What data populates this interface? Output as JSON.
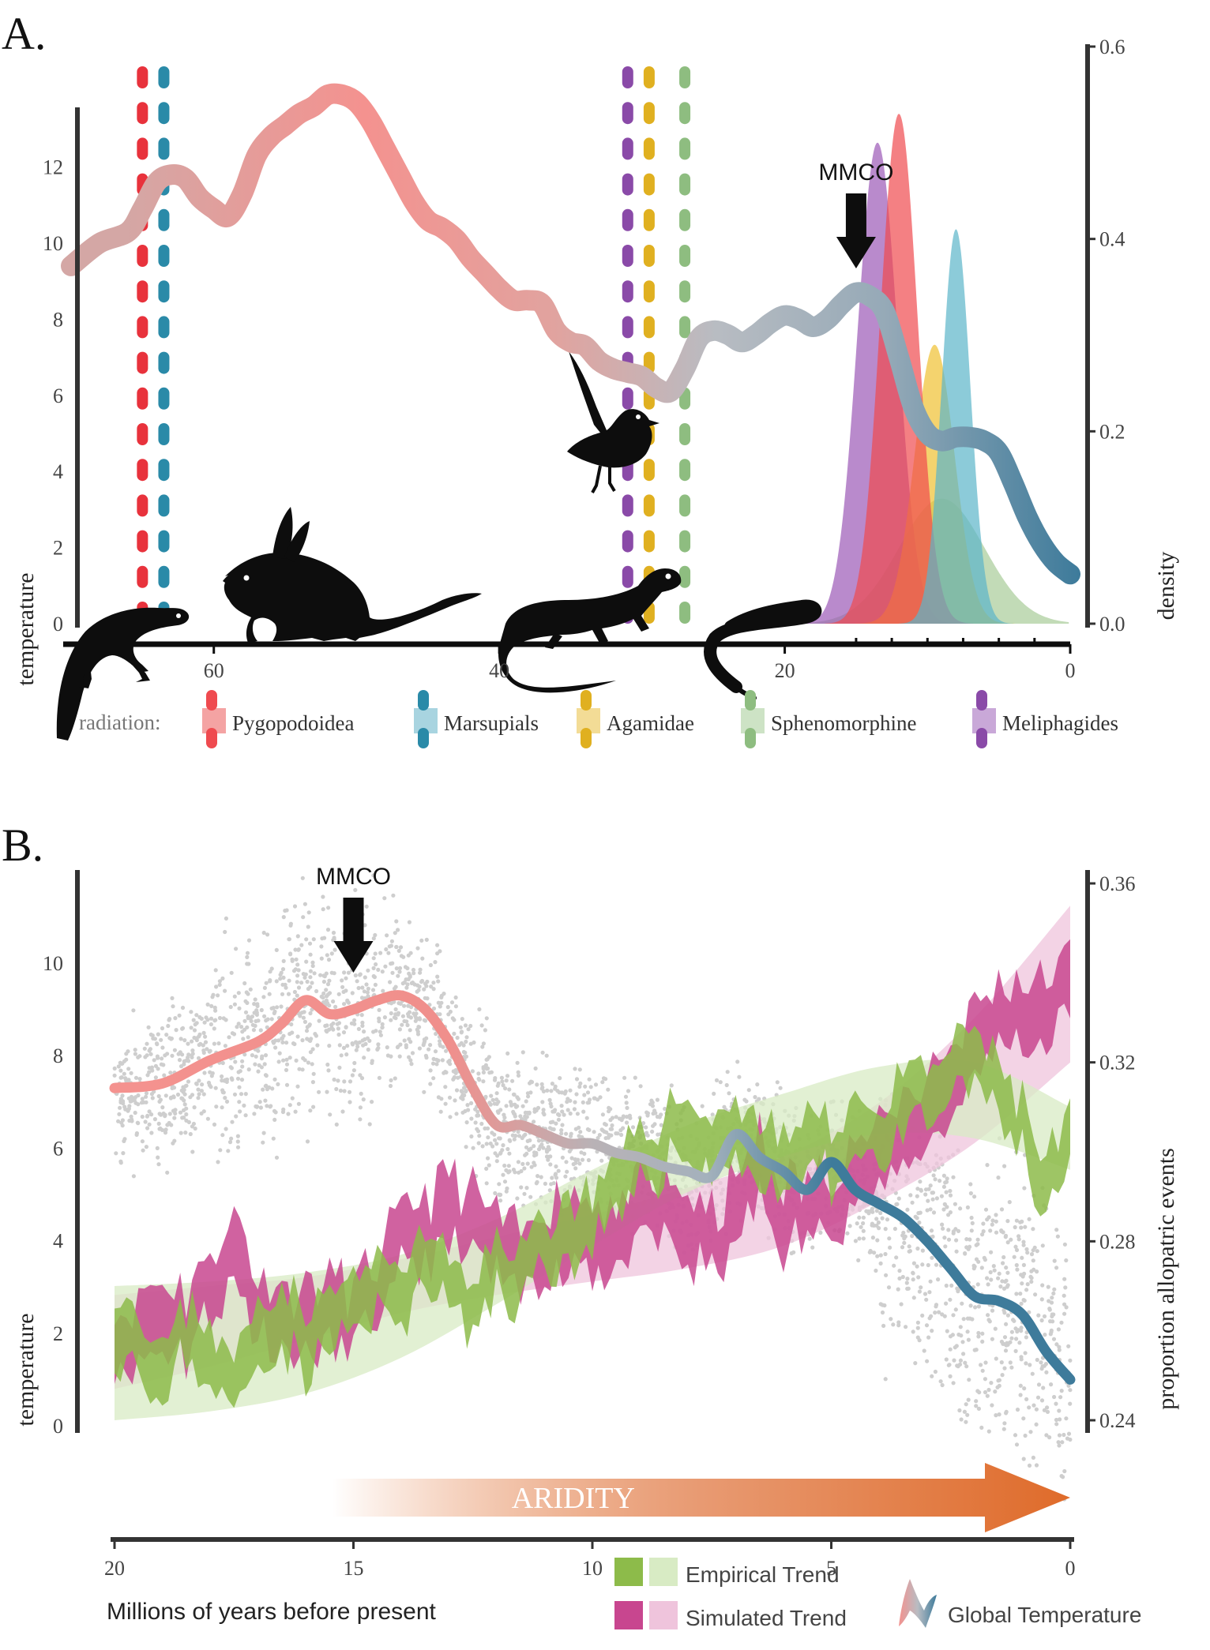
{
  "chart_data": [
    {
      "panel": "A.",
      "type": "line",
      "xlabel": "",
      "ylabel": "temperature",
      "y2label": "density",
      "xlim": [
        70,
        0
      ],
      "ylim": [
        0,
        13
      ],
      "y2lim": [
        0,
        0.6
      ],
      "xticks": [
        60,
        40,
        20,
        0
      ],
      "yticks": [
        0,
        2,
        4,
        6,
        8,
        10,
        12
      ],
      "y2ticks": [
        "0.0",
        "0.2",
        "0.4",
        "0.6"
      ],
      "temperature": {
        "name": "Global Temperature",
        "x": [
          70,
          68,
          66,
          65,
          64,
          63,
          62,
          61,
          60,
          59,
          58,
          57,
          56,
          55,
          54,
          53,
          52,
          51,
          50,
          49,
          48,
          47,
          46,
          45,
          44,
          43,
          42,
          41,
          40,
          39,
          38,
          37,
          36,
          35,
          34,
          33,
          32,
          31,
          30,
          29,
          28,
          27,
          26,
          25,
          24,
          23,
          22,
          21,
          20,
          19,
          18,
          17,
          16,
          15,
          14,
          13,
          12,
          11,
          10,
          9,
          8,
          7,
          6,
          5,
          4,
          3,
          2,
          1,
          0
        ],
        "y": [
          9.4,
          10.0,
          10.3,
          10.9,
          11.6,
          11.8,
          11.7,
          11.2,
          10.9,
          10.7,
          11.3,
          12.3,
          12.8,
          13.1,
          13.4,
          13.6,
          13.9,
          13.9,
          13.7,
          13.2,
          12.5,
          11.8,
          11.1,
          10.6,
          10.4,
          10.1,
          9.6,
          9.2,
          8.8,
          8.5,
          8.5,
          8.4,
          7.7,
          7.4,
          7.3,
          6.9,
          6.7,
          6.6,
          6.5,
          6.2,
          6.1,
          6.7,
          7.5,
          7.7,
          7.6,
          7.4,
          7.6,
          7.9,
          8.1,
          8.0,
          7.8,
          8.0,
          8.4,
          8.7,
          8.6,
          8.2,
          7.0,
          5.7,
          5.0,
          4.8,
          4.9,
          4.9,
          4.8,
          4.5,
          3.7,
          2.8,
          2.1,
          1.6,
          1.3
        ]
      },
      "radiation_timing": [
        {
          "name": "Pygopodoidea",
          "age": 65,
          "color": "#e8323c"
        },
        {
          "name": "Marsupials",
          "age": 63.5,
          "color": "#2a8aa8"
        },
        {
          "name": "Meliphagides",
          "age": 31,
          "color": "#8a4aa8"
        },
        {
          "name": "Agamidae",
          "age": 29.5,
          "color": "#e0b020"
        },
        {
          "name": "Sphenomorphine",
          "age": 27,
          "color": "#8ebd80"
        }
      ],
      "density_peaks": [
        {
          "name": "Meliphagides",
          "mode": 13.5,
          "peak": 0.5,
          "color": "#9b59b6"
        },
        {
          "name": "Pygopodoidea",
          "mode": 12,
          "peak": 0.53,
          "color": "#ef4a4f"
        },
        {
          "name": "Marsupials",
          "mode": 8,
          "peak": 0.41,
          "color": "#5bb5c9"
        },
        {
          "name": "Agamidae",
          "mode": 9.5,
          "peak": 0.29,
          "color": "#f0c030"
        },
        {
          "name": "Sphenomorphine",
          "mode": 9,
          "peak": 0.13,
          "color": "#a8cc98"
        }
      ],
      "annotation": {
        "label": "MMCO",
        "x": 15
      },
      "legend": {
        "title": "radiation:",
        "items": [
          "Pygopodoidea",
          "Marsupials",
          "Agamidae",
          "Sphenomorphine",
          "Meliphagides"
        ],
        "colors": {
          "Pygopodoidea": [
            "#ef4a4f",
            "#f4a3a3"
          ],
          "Marsupials": [
            "#2a8aa8",
            "#a8d4e0"
          ],
          "Agamidae": [
            "#e0b020",
            "#f3dc96"
          ],
          "Sphenomorphine": [
            "#8ebd80",
            "#cde3c5"
          ],
          "Meliphagides": [
            "#8a4aa8",
            "#c9a8d8"
          ]
        }
      },
      "silhouettes": [
        "gecko-silhouette",
        "bilby-silhouette",
        "dragon-lizard-silhouette",
        "legless-lizard-silhouette",
        "fairywren-silhouette"
      ]
    },
    {
      "panel": "B.",
      "type": "area",
      "xlabel": "Millions of years before present",
      "ylabel": "temperature",
      "y2label": "proportion allopatric events",
      "xlim": [
        20,
        0
      ],
      "ylim": [
        0,
        12
      ],
      "y2lim": [
        0.24,
        0.36
      ],
      "xticks": [
        20,
        15,
        10,
        5,
        0
      ],
      "yticks": [
        0,
        2,
        4,
        6,
        8,
        10
      ],
      "y2ticks": [
        "0.24",
        "0.28",
        "0.32",
        "0.36"
      ],
      "temperature": {
        "name": "Global Temperature",
        "x": [
          20,
          19,
          18,
          17,
          16.5,
          16,
          15.5,
          15,
          14.5,
          14,
          13.5,
          13,
          12.5,
          12,
          11.5,
          11,
          10.5,
          10,
          9.5,
          9,
          8.5,
          8,
          7.5,
          7,
          6.5,
          6,
          5.5,
          5,
          4.5,
          4,
          3.5,
          3,
          2.5,
          2,
          1.5,
          1,
          0.5,
          0
        ],
        "y": [
          7.3,
          7.4,
          7.9,
          8.3,
          8.7,
          9.2,
          8.9,
          9.0,
          9.2,
          9.3,
          9.0,
          8.3,
          7.3,
          6.5,
          6.5,
          6.3,
          6.1,
          6.1,
          5.9,
          5.8,
          5.6,
          5.5,
          5.4,
          6.3,
          5.8,
          5.5,
          5.1,
          5.7,
          5.1,
          4.8,
          4.5,
          4.0,
          3.4,
          2.8,
          2.7,
          2.4,
          1.6,
          1.0
        ]
      },
      "empirical_trend": {
        "name": "Empirical Trend",
        "x": [
          20,
          18,
          16,
          14,
          12,
          10,
          8,
          6,
          4,
          2,
          0
        ],
        "y": [
          0.255,
          0.256,
          0.259,
          0.265,
          0.275,
          0.287,
          0.298,
          0.306,
          0.312,
          0.315,
          0.3
        ],
        "lower": [
          0.24,
          0.242,
          0.246,
          0.254,
          0.266,
          0.279,
          0.291,
          0.299,
          0.304,
          0.303,
          0.296
        ],
        "upper": [
          0.27,
          0.271,
          0.273,
          0.277,
          0.285,
          0.296,
          0.306,
          0.313,
          0.319,
          0.32,
          0.31
        ]
      },
      "simulated_trend": {
        "name": "Simulated Trend",
        "x": [
          20,
          18,
          16,
          14,
          12,
          10,
          8,
          6,
          4,
          2,
          0
        ],
        "y": [
          0.258,
          0.261,
          0.265,
          0.27,
          0.275,
          0.279,
          0.283,
          0.289,
          0.299,
          0.315,
          0.335
        ],
        "lower": [
          0.247,
          0.252,
          0.258,
          0.264,
          0.268,
          0.271,
          0.274,
          0.279,
          0.289,
          0.302,
          0.32
        ],
        "upper": [
          0.268,
          0.27,
          0.272,
          0.276,
          0.281,
          0.286,
          0.292,
          0.299,
          0.311,
          0.33,
          0.355
        ]
      },
      "empirical_raw": {
        "x": [
          20,
          19.5,
          19,
          18.5,
          18,
          17.5,
          17,
          16.5,
          16,
          15.5,
          15,
          14.5,
          14,
          13.5,
          13,
          12.5,
          12,
          11.5,
          11,
          10.5,
          10,
          9.5,
          9,
          8.5,
          8,
          7.5,
          7,
          6.5,
          6,
          5.5,
          5,
          4.5,
          4,
          3.5,
          3,
          2.5,
          2,
          1.5,
          1,
          0.5,
          0
        ],
        "y": [
          0.263,
          0.258,
          0.25,
          0.26,
          0.256,
          0.248,
          0.26,
          0.263,
          0.258,
          0.262,
          0.265,
          0.268,
          0.27,
          0.276,
          0.272,
          0.262,
          0.276,
          0.272,
          0.28,
          0.282,
          0.286,
          0.29,
          0.297,
          0.304,
          0.305,
          0.302,
          0.306,
          0.298,
          0.296,
          0.302,
          0.3,
          0.306,
          0.304,
          0.31,
          0.313,
          0.318,
          0.322,
          0.314,
          0.305,
          0.29,
          0.305
        ],
        "spread": 0.006
      },
      "simulated_raw": {
        "x": [
          20,
          19.5,
          19,
          18.5,
          18,
          17.5,
          17,
          16.5,
          16,
          15.5,
          15,
          14.5,
          14,
          13.5,
          13,
          12.5,
          12,
          11.5,
          11,
          10.5,
          10,
          9.5,
          9,
          8.5,
          8,
          7.5,
          7,
          6.5,
          6,
          5.5,
          5,
          4.5,
          4,
          3.5,
          3,
          2.5,
          2,
          1.5,
          1,
          0.5,
          0
        ],
        "y": [
          0.258,
          0.26,
          0.264,
          0.262,
          0.27,
          0.278,
          0.266,
          0.262,
          0.262,
          0.265,
          0.262,
          0.268,
          0.28,
          0.283,
          0.287,
          0.284,
          0.278,
          0.276,
          0.279,
          0.283,
          0.282,
          0.28,
          0.285,
          0.288,
          0.283,
          0.279,
          0.286,
          0.296,
          0.286,
          0.286,
          0.29,
          0.296,
          0.298,
          0.304,
          0.31,
          0.316,
          0.325,
          0.33,
          0.332,
          0.33,
          0.338
        ],
        "spread": 0.007
      },
      "annotations": [
        {
          "label": "MMCO",
          "x": 15
        },
        {
          "label": "ARIDITY",
          "x_start": 15.5,
          "x_end": 0
        }
      ],
      "legend": {
        "items": [
          "Empirical Trend",
          "Simulated Trend",
          "Global Temperature"
        ],
        "colors": {
          "Empirical Trend": [
            "#8dbb4a",
            "#d8ebc4"
          ],
          "Simulated Trend": [
            "#c8468f",
            "#efc4dc"
          ]
        }
      }
    }
  ],
  "colors": {
    "temp_warm": "#f4928f",
    "temp_mid": "#b8bcc2",
    "temp_cool": "#3e7b9b",
    "aridity_end": "#df6b2a",
    "scatter": "#bdbdbd"
  }
}
